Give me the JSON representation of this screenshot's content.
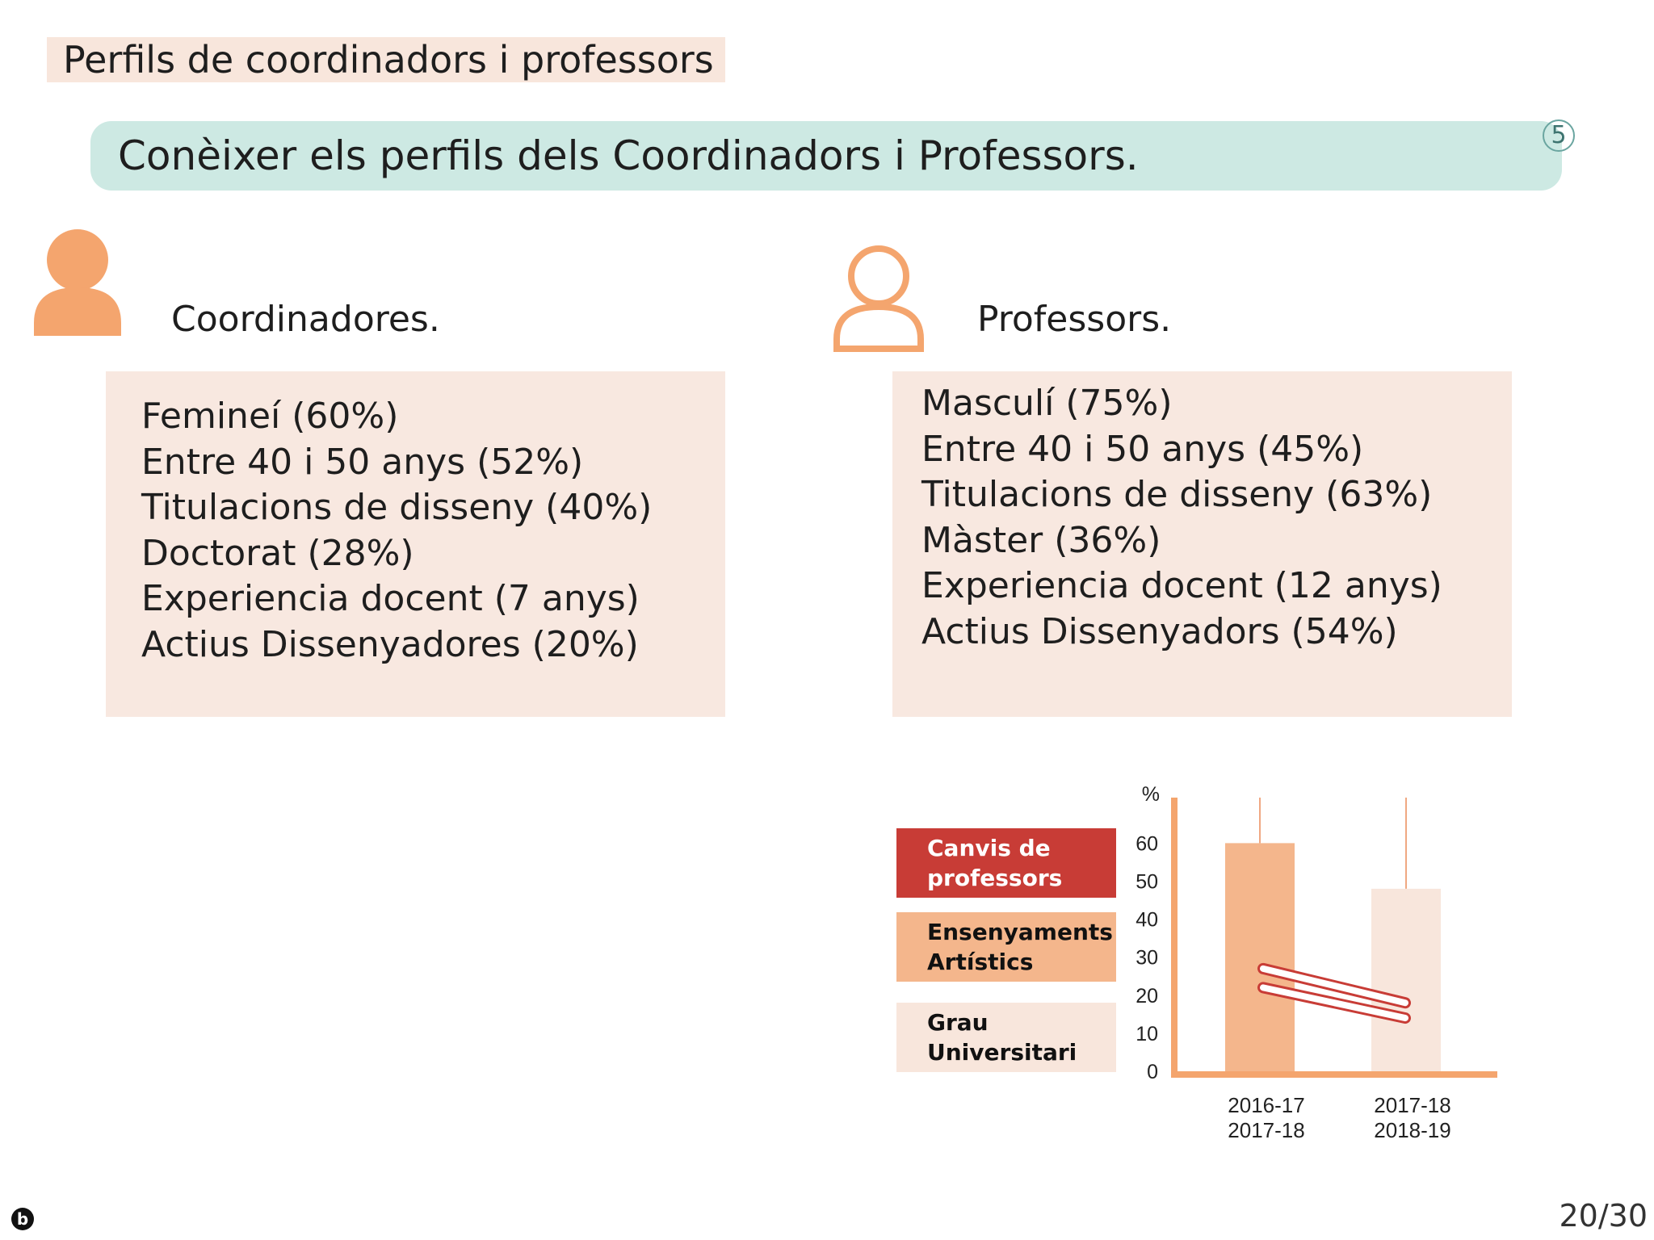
{
  "header": {
    "title": "Perfils de coordinadors i professors",
    "subtitle": "Conèixer els perfils dels Coordinadors i Professors.",
    "badge": "5"
  },
  "coordinators": {
    "label": "Coordinadores.",
    "icon": "person-filled-icon",
    "items": [
      "Femineí (60%)",
      "Entre 40 i 50 anys (52%)",
      "Titulacions de disseny (40%)",
      "Doctorat (28%)",
      "Experiencia docent (7 anys)",
      "Actius Dissenyadores (20%)"
    ]
  },
  "professors": {
    "label": "Professors.",
    "icon": "person-outline-icon",
    "items": [
      "Masculí (75%)",
      "Entre 40 i 50 anys (45%)",
      "Titulacions de disseny (63%)",
      "Màster (36%)",
      "Experiencia docent (12 anys)",
      "Actius Dissenyadors (54%)"
    ]
  },
  "legend": [
    {
      "text1": "Canvis de",
      "text2": "professors",
      "color": "#c83c36",
      "text_color": "#ffffff"
    },
    {
      "text1": "Ensenyaments",
      "text2": "Artístics",
      "color": "#f4b68c",
      "text_color": "#111111"
    },
    {
      "text1": "Grau",
      "text2": "Universitari",
      "color": "#f8e6dc",
      "text_color": "#111111"
    }
  ],
  "chart_data": {
    "type": "bar",
    "ylabel": "%",
    "ylim": [
      0,
      70
    ],
    "yticks": [
      0,
      10,
      20,
      30,
      40,
      50,
      60
    ],
    "categories": [
      {
        "line1": "2016-17",
        "line2": "2017-18"
      },
      {
        "line1": "2017-18",
        "line2": "2018-19"
      }
    ],
    "series": [
      {
        "name": "Ensenyaments Artístics",
        "color": "#f4b68c",
        "category_index": 0,
        "value": 60
      },
      {
        "name": "Grau Universitari",
        "color": "#f8e6dc",
        "category_index": 1,
        "value": 48
      }
    ],
    "trend_lines": {
      "name": "Canvis de professors",
      "color": "#c83c36",
      "lines": [
        {
          "from": 27,
          "to": 18
        },
        {
          "from": 22,
          "to": 14
        }
      ]
    }
  },
  "footer": {
    "page": "20/30",
    "logo": "b"
  }
}
